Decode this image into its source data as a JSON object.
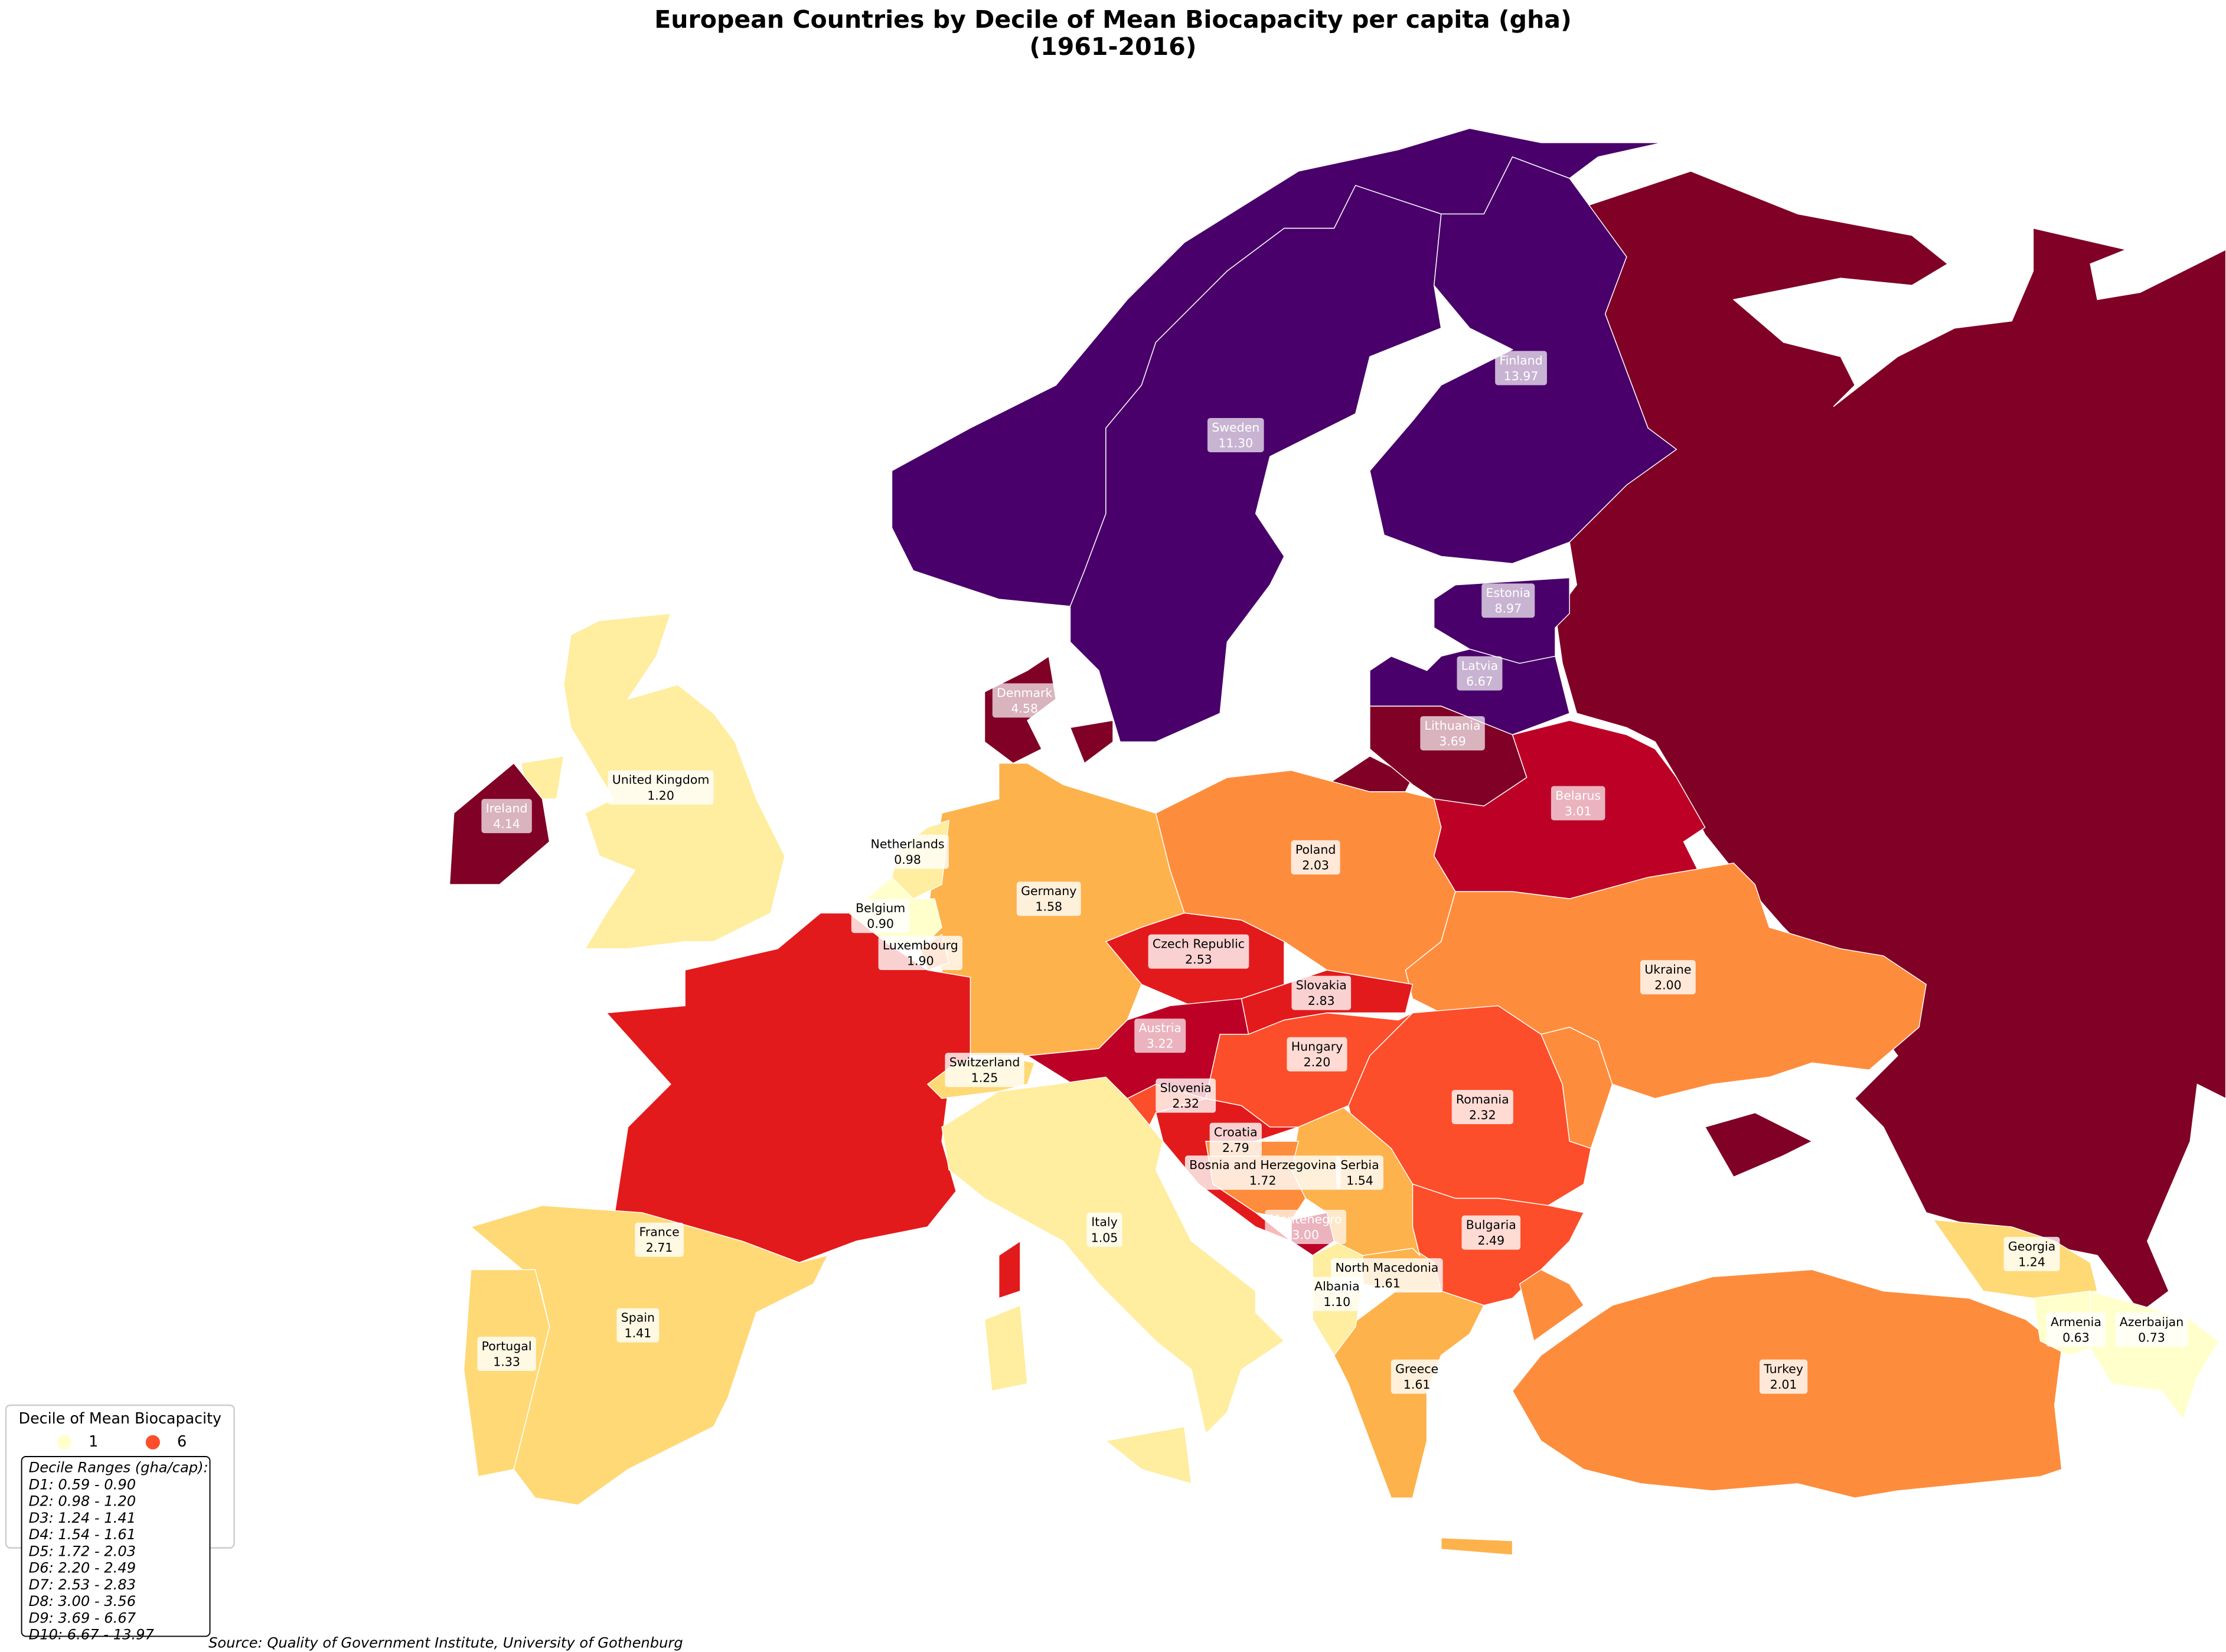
{
  "title": "European Countries by Decile of Mean Biocapacity per capita (gha)",
  "title_line2": "(1961-2016)",
  "source": "Source: Quality of Government Institute, University of Gothenburg",
  "legend": {
    "title": "Decile of Mean Biocapacity",
    "deciles": [
      1,
      2,
      3,
      4,
      5,
      6,
      7,
      8,
      9,
      10
    ],
    "colors": [
      "#ffffcc",
      "#ffeda0",
      "#fed976",
      "#feb24c",
      "#fd8d3c",
      "#fc4e2a",
      "#e31a1c",
      "#bd0026",
      "#800026",
      "#49006a"
    ],
    "ranges_title": "Decile Ranges (gha/cap):",
    "ranges": [
      "D1: 0.59 - 0.90",
      "D2: 0.98 - 1.20",
      "D3: 1.24 - 1.41",
      "D4: 1.54 - 1.61",
      "D5: 1.72 - 2.03",
      "D6: 2.20 - 2.49",
      "D7: 2.53 - 2.83",
      "D8: 3.00 - 3.56",
      "D9: 3.69 - 6.67",
      "D10: 6.67 - 13.97"
    ]
  },
  "countries": [
    {
      "name": "Finland",
      "value": 13.97,
      "decile": 10
    },
    {
      "name": "Sweden",
      "value": 11.3,
      "value_label": "11.30",
      "decile": 10
    },
    {
      "name": "Estonia",
      "value": 8.97,
      "decile": 10
    },
    {
      "name": "Latvia",
      "value": 6.67,
      "decile": 10
    },
    {
      "name": "Lithuania",
      "value": 3.69,
      "decile": 9
    },
    {
      "name": "Belarus",
      "value": 3.01,
      "decile": 8
    },
    {
      "name": "Poland",
      "value": 2.03,
      "decile": 5
    },
    {
      "name": "Ukraine",
      "value": 2.0,
      "value_label": "2.00",
      "decile": 5
    },
    {
      "name": "Romania",
      "value": 2.32,
      "decile": 6
    },
    {
      "name": "Bulgaria",
      "value": 2.49,
      "decile": 6
    },
    {
      "name": "Turkey",
      "value": 2.01,
      "decile": 5
    },
    {
      "name": "Greece",
      "value": 1.61,
      "decile": 4
    },
    {
      "name": "North Macedonia",
      "value": 1.61,
      "decile": 4
    },
    {
      "name": "Albania",
      "value": 1.1,
      "value_label": "1.10",
      "decile": 2
    },
    {
      "name": "Montenegro",
      "value": 3.0,
      "value_label": "3.00",
      "decile": 8
    },
    {
      "name": "Serbia",
      "value": 1.54,
      "decile": 4
    },
    {
      "name": "Bosnia and Herzegovina",
      "value": 1.72,
      "decile": 5
    },
    {
      "name": "Croatia",
      "value": 2.79,
      "decile": 7
    },
    {
      "name": "Slovenia",
      "value": 2.32,
      "decile": 6
    },
    {
      "name": "Hungary",
      "value": 2.2,
      "value_label": "2.20",
      "decile": 6
    },
    {
      "name": "Slovakia",
      "value": 2.83,
      "decile": 7
    },
    {
      "name": "Czech Republic",
      "value": 2.53,
      "decile": 7
    },
    {
      "name": "Austria",
      "value": 3.22,
      "decile": 8
    },
    {
      "name": "Germany",
      "value": 1.58,
      "decile": 4
    },
    {
      "name": "Denmark",
      "value": 4.58,
      "decile": 9
    },
    {
      "name": "Netherlands",
      "value": 0.98,
      "decile": 2
    },
    {
      "name": "Belgium",
      "value": 0.9,
      "value_label": "0.90",
      "decile": 1
    },
    {
      "name": "Luxembourg",
      "value": 1.9,
      "value_label": "1.90",
      "decile": 5
    },
    {
      "name": "France",
      "value": 2.71,
      "decile": 7
    },
    {
      "name": "Switzerland",
      "value": 1.25,
      "decile": 3
    },
    {
      "name": "Italy",
      "value": 1.05,
      "decile": 2
    },
    {
      "name": "Spain",
      "value": 1.41,
      "decile": 3
    },
    {
      "name": "Portugal",
      "value": 1.33,
      "decile": 3
    },
    {
      "name": "United Kingdom",
      "value": 1.2,
      "value_label": "1.20",
      "decile": 2
    },
    {
      "name": "Ireland",
      "value": 4.14,
      "decile": 9
    },
    {
      "name": "Georgia",
      "value": 1.24,
      "decile": 3
    },
    {
      "name": "Armenia",
      "value": 0.63,
      "decile": 1
    },
    {
      "name": "Azerbaijan",
      "value": 0.73,
      "decile": 1
    }
  ]
}
